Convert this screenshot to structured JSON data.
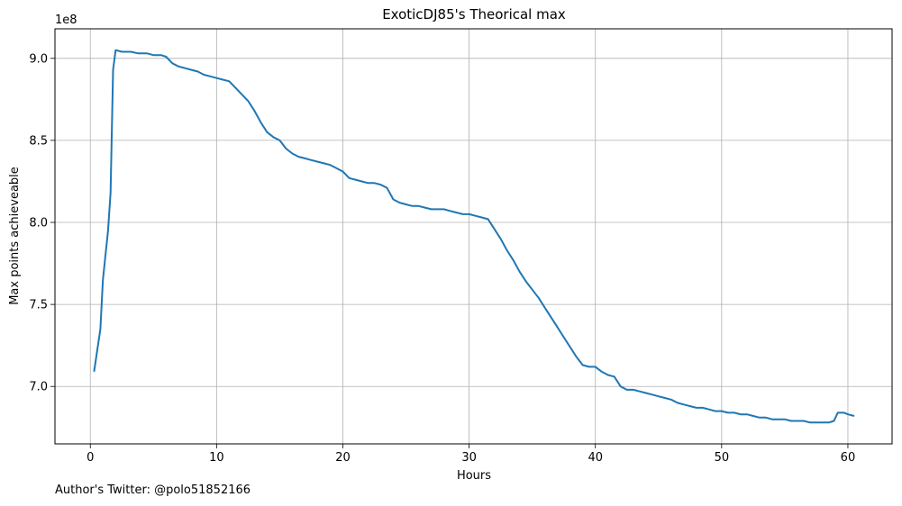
{
  "chart_data": {
    "type": "line",
    "title": "ExoticDJ85's Theorical max",
    "xlabel": "Hours",
    "ylabel": "Max points achieveable",
    "y_offset_label": "1e8",
    "xlim": [
      -2.8,
      63.5
    ],
    "ylim": [
      6.65,
      9.18
    ],
    "y_scale_note": "values in units of 1e8",
    "grid": true,
    "x_ticks": [
      0,
      10,
      20,
      30,
      40,
      50,
      60
    ],
    "x_tick_labels": [
      "0",
      "10",
      "20",
      "30",
      "40",
      "50",
      "60"
    ],
    "y_ticks": [
      7.0,
      7.5,
      8.0,
      8.5,
      9.0
    ],
    "y_tick_labels": [
      "7.0",
      "7.5",
      "8.0",
      "8.5",
      "9.0"
    ],
    "series": [
      {
        "color": "#1f77b4",
        "points": [
          [
            0.3,
            7.09
          ],
          [
            0.8,
            7.35
          ],
          [
            1.0,
            7.65
          ],
          [
            1.4,
            7.95
          ],
          [
            1.6,
            8.18
          ],
          [
            1.8,
            8.93
          ],
          [
            2.0,
            9.05
          ],
          [
            2.5,
            9.04
          ],
          [
            3.2,
            9.04
          ],
          [
            3.8,
            9.03
          ],
          [
            4.5,
            9.03
          ],
          [
            5.0,
            9.02
          ],
          [
            5.6,
            9.02
          ],
          [
            6.0,
            9.01
          ],
          [
            6.5,
            8.97
          ],
          [
            7.0,
            8.95
          ],
          [
            7.5,
            8.94
          ],
          [
            8.0,
            8.93
          ],
          [
            8.5,
            8.92
          ],
          [
            9.0,
            8.9
          ],
          [
            9.5,
            8.89
          ],
          [
            10.0,
            8.88
          ],
          [
            10.5,
            8.87
          ],
          [
            11.0,
            8.86
          ],
          [
            11.5,
            8.82
          ],
          [
            12.0,
            8.78
          ],
          [
            12.5,
            8.74
          ],
          [
            13.0,
            8.68
          ],
          [
            13.5,
            8.61
          ],
          [
            14.0,
            8.55
          ],
          [
            14.5,
            8.52
          ],
          [
            15.0,
            8.5
          ],
          [
            15.5,
            8.45
          ],
          [
            16.0,
            8.42
          ],
          [
            16.5,
            8.4
          ],
          [
            17.0,
            8.39
          ],
          [
            17.5,
            8.38
          ],
          [
            18.0,
            8.37
          ],
          [
            18.5,
            8.36
          ],
          [
            19.0,
            8.35
          ],
          [
            19.5,
            8.33
          ],
          [
            20.0,
            8.31
          ],
          [
            20.5,
            8.27
          ],
          [
            21.0,
            8.26
          ],
          [
            21.5,
            8.25
          ],
          [
            22.0,
            8.24
          ],
          [
            22.5,
            8.24
          ],
          [
            23.0,
            8.23
          ],
          [
            23.5,
            8.21
          ],
          [
            24.0,
            8.14
          ],
          [
            24.5,
            8.12
          ],
          [
            25.0,
            8.11
          ],
          [
            25.5,
            8.1
          ],
          [
            26.0,
            8.1
          ],
          [
            26.5,
            8.09
          ],
          [
            27.0,
            8.08
          ],
          [
            27.5,
            8.08
          ],
          [
            28.0,
            8.08
          ],
          [
            28.5,
            8.07
          ],
          [
            29.0,
            8.06
          ],
          [
            29.5,
            8.05
          ],
          [
            30.0,
            8.05
          ],
          [
            30.5,
            8.04
          ],
          [
            31.0,
            8.03
          ],
          [
            31.5,
            8.02
          ],
          [
            32.0,
            7.96
          ],
          [
            32.5,
            7.9
          ],
          [
            33.0,
            7.83
          ],
          [
            33.5,
            7.77
          ],
          [
            34.0,
            7.7
          ],
          [
            34.5,
            7.64
          ],
          [
            35.0,
            7.59
          ],
          [
            35.5,
            7.54
          ],
          [
            36.0,
            7.48
          ],
          [
            36.5,
            7.42
          ],
          [
            37.0,
            7.36
          ],
          [
            37.5,
            7.3
          ],
          [
            38.0,
            7.24
          ],
          [
            38.5,
            7.18
          ],
          [
            39.0,
            7.13
          ],
          [
            39.5,
            7.12
          ],
          [
            40.0,
            7.12
          ],
          [
            40.5,
            7.09
          ],
          [
            41.0,
            7.07
          ],
          [
            41.5,
            7.06
          ],
          [
            42.0,
            7.0
          ],
          [
            42.5,
            6.98
          ],
          [
            43.0,
            6.98
          ],
          [
            43.5,
            6.97
          ],
          [
            44.0,
            6.96
          ],
          [
            44.5,
            6.95
          ],
          [
            45.0,
            6.94
          ],
          [
            45.5,
            6.93
          ],
          [
            46.0,
            6.92
          ],
          [
            46.5,
            6.9
          ],
          [
            47.0,
            6.89
          ],
          [
            47.5,
            6.88
          ],
          [
            48.0,
            6.87
          ],
          [
            48.5,
            6.87
          ],
          [
            49.0,
            6.86
          ],
          [
            49.5,
            6.85
          ],
          [
            50.0,
            6.85
          ],
          [
            50.5,
            6.84
          ],
          [
            51.0,
            6.84
          ],
          [
            51.5,
            6.83
          ],
          [
            52.0,
            6.83
          ],
          [
            52.5,
            6.82
          ],
          [
            53.0,
            6.81
          ],
          [
            53.5,
            6.81
          ],
          [
            54.0,
            6.8
          ],
          [
            54.5,
            6.8
          ],
          [
            55.0,
            6.8
          ],
          [
            55.5,
            6.79
          ],
          [
            56.0,
            6.79
          ],
          [
            56.5,
            6.79
          ],
          [
            57.0,
            6.78
          ],
          [
            57.5,
            6.78
          ],
          [
            58.0,
            6.78
          ],
          [
            58.5,
            6.78
          ],
          [
            58.9,
            6.79
          ],
          [
            59.2,
            6.84
          ],
          [
            59.7,
            6.84
          ],
          [
            60.0,
            6.83
          ],
          [
            60.5,
            6.82
          ]
        ]
      }
    ]
  },
  "footer": {
    "author_note": "Author's Twitter: @polo51852166"
  }
}
